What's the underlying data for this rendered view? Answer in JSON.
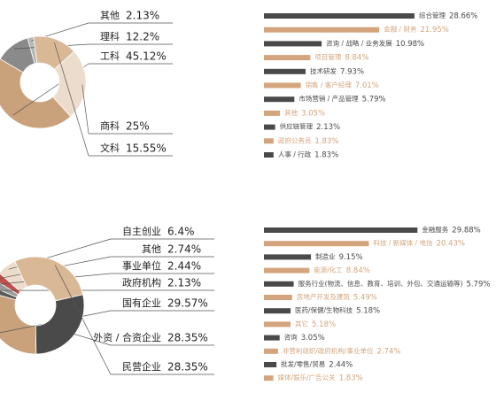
{
  "chart_data": [
    {
      "type": "pie",
      "donut": true,
      "categories": [
        "其他",
        "理科",
        "工科",
        "商科",
        "文科"
      ],
      "values": [
        2.13,
        12.2,
        45.12,
        25,
        15.55
      ],
      "value_labels": [
        "2.13%",
        "12.2%",
        "45.12%",
        "25%",
        "15.55%"
      ],
      "colors": [
        "#b8b8b8",
        "#8a8a8a",
        "#c9a27c",
        "#ecdccb",
        "#d9b896"
      ]
    },
    {
      "type": "bar",
      "orientation": "horizontal",
      "categories": [
        "综合管理",
        "金融 / 财务",
        "咨询 / 战略 / 业务发展",
        "项目管理",
        "技术研发",
        "销售 / 客户经理",
        "市场营销 / 产品管理",
        "其他",
        "供应链管理",
        "政府公务员",
        "人事 / 行政"
      ],
      "values": [
        28.66,
        21.95,
        10.98,
        8.84,
        7.93,
        7.01,
        5.79,
        3.05,
        2.13,
        1.83,
        1.83
      ],
      "value_labels": [
        "28.66%",
        "21.95%",
        "10.98%",
        "8.84%",
        "7.93%",
        "7.01%",
        "5.79%",
        "3.05%",
        "2.13%",
        "1.83%",
        "1.83%"
      ],
      "colors": [
        "#4a4a4a",
        "#d4a57c",
        "#4a4a4a",
        "#d4a57c",
        "#4a4a4a",
        "#d4a57c",
        "#4a4a4a",
        "#d4a57c",
        "#4a4a4a",
        "#d4a57c",
        "#4a4a4a"
      ]
    },
    {
      "type": "pie",
      "donut": true,
      "categories": [
        "自主创业",
        "其他",
        "事业单位",
        "政府机构",
        "国有企业",
        "外资 / 合资企业",
        "民营企业"
      ],
      "values": [
        6.4,
        2.74,
        2.44,
        2.13,
        29.57,
        28.35,
        28.35
      ],
      "value_labels": [
        "6.4%",
        "2.74%",
        "2.44%",
        "2.13%",
        "29.57%",
        "28.35%",
        "28.35%"
      ],
      "colors": [
        "#ecdccb",
        "#c0504d",
        "#9a9a9a",
        "#5a5a5a",
        "#c9a27c",
        "#4a4a4a",
        "#d9b896"
      ]
    },
    {
      "type": "bar",
      "orientation": "horizontal",
      "categories": [
        "金融服务",
        "科技 / 新媒体 / 电信",
        "制造业",
        "能源/化工",
        "服务行业(物流、信息、教育、培训、外包、交通运输等)",
        "房地产开发及建筑",
        "医药/保健/生物科技",
        "其它",
        "咨询",
        "非营利组织/政府机构/事业单位",
        "批发/零售/贸易",
        "媒体/娱乐/广告公关"
      ],
      "values": [
        29.88,
        20.43,
        9.15,
        8.84,
        5.79,
        5.49,
        5.18,
        5.18,
        3.05,
        2.74,
        2.44,
        1.83
      ],
      "value_labels": [
        "29.88%",
        "20.43%",
        "9.15%",
        "8.84%",
        "5.79%",
        "5.49%",
        "5.18%",
        "5.18%",
        "3.05%",
        "2.74%",
        "2.44%",
        "1.83%"
      ],
      "colors": [
        "#4a4a4a",
        "#d4a57c",
        "#4a4a4a",
        "#d4a57c",
        "#4a4a4a",
        "#d4a57c",
        "#4a4a4a",
        "#d4a57c",
        "#4a4a4a",
        "#d4a57c",
        "#4a4a4a",
        "#d4a57c"
      ]
    }
  ]
}
